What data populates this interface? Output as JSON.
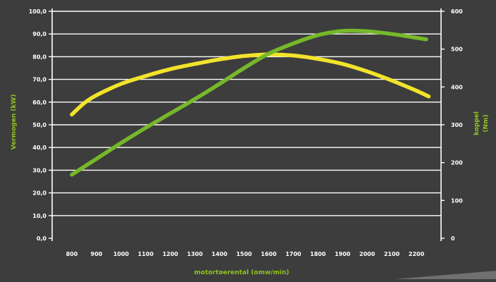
{
  "chart_data": {
    "type": "line",
    "xlabel": "motortoerental (omw/min)",
    "ylabel_left": "Vermogen (kW)",
    "ylabel_right_line1": "koppel",
    "ylabel_right_line2": "(Nm)",
    "x_ticks": [
      800,
      900,
      1000,
      1100,
      1200,
      1300,
      1400,
      1500,
      1600,
      1700,
      1800,
      1900,
      2000,
      2100,
      2200
    ],
    "x_tick_labels": [
      "800",
      "900",
      "1000",
      "1100",
      "1200",
      "1300",
      "1400",
      "1500",
      "1600",
      "1700",
      "1800",
      "1900",
      "2000",
      "2100",
      "2200"
    ],
    "xlim": [
      720,
      2300
    ],
    "y_left_ticks": [
      0,
      10,
      20,
      30,
      40,
      50,
      60,
      70,
      80,
      90,
      100
    ],
    "y_left_tick_labels": [
      "0,0",
      "10,0",
      "20,0",
      "30,0",
      "40,0",
      "50,0",
      "60,0",
      "70,0",
      "80,0",
      "90,0",
      "100,0"
    ],
    "ylim_left": [
      0,
      100
    ],
    "y_right_ticks": [
      0,
      100,
      200,
      300,
      400,
      500,
      600
    ],
    "y_right_tick_labels": [
      "0",
      "100",
      "200",
      "300",
      "400",
      "500",
      "600"
    ],
    "ylim_right": [
      0,
      600
    ],
    "grid": true,
    "series": [
      {
        "axis": "left",
        "color": "#f2e32b",
        "points": [
          [
            800,
            54.5
          ],
          [
            850,
            59.5
          ],
          [
            900,
            63
          ],
          [
            1000,
            68
          ],
          [
            1100,
            71.5
          ],
          [
            1200,
            74.5
          ],
          [
            1300,
            76.8
          ],
          [
            1400,
            78.8
          ],
          [
            1500,
            80.3
          ],
          [
            1600,
            81
          ],
          [
            1700,
            80.5
          ],
          [
            1800,
            79
          ],
          [
            1900,
            76.8
          ],
          [
            2000,
            73.5
          ],
          [
            2100,
            69.5
          ],
          [
            2200,
            65
          ],
          [
            2250,
            62.5
          ]
        ]
      },
      {
        "axis": "right",
        "color": "#76b82a",
        "points": [
          [
            800,
            168
          ],
          [
            900,
            210
          ],
          [
            1000,
            252
          ],
          [
            1100,
            292
          ],
          [
            1200,
            330
          ],
          [
            1300,
            368
          ],
          [
            1400,
            408
          ],
          [
            1500,
            450
          ],
          [
            1600,
            488
          ],
          [
            1700,
            515
          ],
          [
            1800,
            537
          ],
          [
            1900,
            548
          ],
          [
            2000,
            547
          ],
          [
            2100,
            540
          ],
          [
            2200,
            530
          ],
          [
            2240,
            526
          ]
        ]
      }
    ]
  }
}
